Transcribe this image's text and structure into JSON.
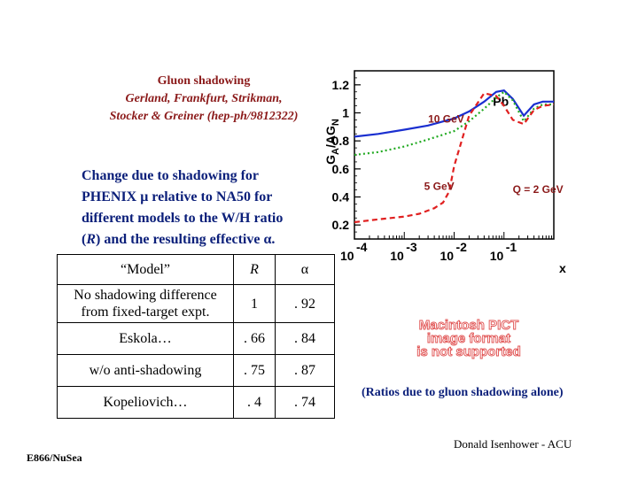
{
  "header": {
    "title": "Gluon shadowing",
    "authors": "Gerland, Frankfurt, Strikman,",
    "authors2": "Stocker & Greiner (hep-ph/9812322)"
  },
  "description": {
    "line1": "Change due to shadowing for",
    "line2": "PHENIX μ relative to NA50 for",
    "line3": "different models to the W/H ratio",
    "line4_a": "(",
    "line4_r": "R",
    "line4_b": ") and the resulting effective α."
  },
  "model_table": {
    "headers": [
      "“Model”",
      "R",
      "α"
    ],
    "rows": [
      {
        "model_line1": "No shadowing difference",
        "model_line2": "from fixed-target expt.",
        "R": "1",
        "alpha": ". 92"
      },
      {
        "model": "Eskola…",
        "R": ". 66",
        "alpha": ". 84"
      },
      {
        "model": "w/o anti-shadowing",
        "R": ". 75",
        "alpha": ". 87"
      },
      {
        "model": "Kopeliovich…",
        "R": ". 4",
        "alpha": ". 74"
      }
    ]
  },
  "pict_placeholder": {
    "line1": "Macintosh PICT",
    "line2": "image format",
    "line3": "is not supported"
  },
  "ratios_note": "(Ratios due to gluon shadowing alone)",
  "credit": "Donald Isenhower - ACU",
  "experiment": "E866/NuSea",
  "colors": {
    "title_red": "#8b1a1a",
    "text_blue": "#0b1f7a",
    "curve_blue": "#1a2fd0",
    "curve_green": "#22aa22",
    "curve_red": "#e02020",
    "pict_red": "#e05050"
  },
  "chart_data": {
    "type": "line",
    "title": "Pb",
    "ylabel_main": "G",
    "ylabel_sub_top": "A",
    "ylabel_sub_bottom": "N",
    "ylabel_mid": "/AG",
    "xlabel": "x",
    "x_scale": "log",
    "xlim": [
      0.0001,
      1
    ],
    "ylim": [
      0.1,
      1.3
    ],
    "y_ticks": [
      0.2,
      0.4,
      0.6,
      0.8,
      1,
      1.2
    ],
    "y_tick_labels": [
      "0.2",
      "0.4",
      "0.6",
      "0.8",
      "1",
      "1.2"
    ],
    "x_ticks": [
      0.0001,
      0.001,
      0.01,
      0.1
    ],
    "x_tick_base": [
      "10",
      "10",
      "10",
      "10"
    ],
    "x_tick_exp": [
      "-4",
      "-3",
      "-2",
      "-1"
    ],
    "annotations": [
      "10 GeV",
      "5 GeV",
      "Q = 2 GeV"
    ],
    "series": [
      {
        "name": "10 GeV",
        "style": "solid",
        "x": [
          0.0001,
          0.0003,
          0.001,
          0.003,
          0.01,
          0.02,
          0.04,
          0.07,
          0.1,
          0.15,
          0.25,
          0.4,
          0.6,
          1.0
        ],
        "y": [
          0.83,
          0.85,
          0.88,
          0.91,
          0.96,
          1.01,
          1.08,
          1.15,
          1.16,
          1.1,
          0.98,
          1.06,
          1.08,
          1.08
        ]
      },
      {
        "name": "5 GeV",
        "style": "dotted",
        "x": [
          0.0001,
          0.0003,
          0.001,
          0.003,
          0.01,
          0.02,
          0.04,
          0.07,
          0.1,
          0.15,
          0.25,
          0.4,
          0.6,
          1.0
        ],
        "y": [
          0.7,
          0.72,
          0.76,
          0.81,
          0.87,
          0.94,
          1.03,
          1.11,
          1.15,
          1.09,
          0.94,
          1.03,
          1.06,
          1.06
        ]
      },
      {
        "name": "Q = 2 GeV",
        "style": "dashed",
        "x": [
          0.0001,
          0.0003,
          0.001,
          0.002,
          0.004,
          0.006,
          0.008,
          0.01,
          0.02,
          0.04,
          0.07,
          0.1,
          0.15,
          0.25,
          0.4,
          0.6,
          1.0
        ],
        "y": [
          0.22,
          0.24,
          0.26,
          0.28,
          0.32,
          0.36,
          0.44,
          0.62,
          0.98,
          1.14,
          1.12,
          1.05,
          0.95,
          0.92,
          1.02,
          1.05,
          1.06
        ]
      }
    ]
  }
}
